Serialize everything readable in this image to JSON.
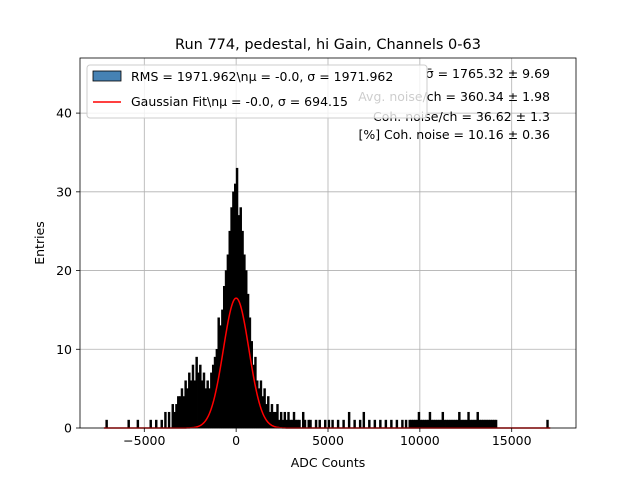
{
  "chart_data": {
    "type": "histogram",
    "title": "Run 774, pedestal, hi Gain, Channels 0-63",
    "xlabel": "ADC Counts",
    "ylabel": "Entries",
    "xlim": [
      -8500,
      18500
    ],
    "ylim": [
      0,
      47
    ],
    "xticks": [
      -5000,
      0,
      5000,
      10000,
      15000
    ],
    "xtick_labels": [
      "−5000",
      "0",
      "5000",
      "10000",
      "15000"
    ],
    "yticks": [
      0,
      10,
      20,
      30,
      40
    ],
    "ytick_labels": [
      "0",
      "10",
      "20",
      "30",
      "40"
    ],
    "grid": true,
    "bin_width": 100,
    "legend_location": "top-left",
    "series": [
      {
        "name": "RMS = 1971.962\\nμ = -0.0, σ = 1971.962",
        "kind": "histogram",
        "color": "#000000",
        "legend_color": "#4682b4",
        "bins": [
          [
            -7100,
            1
          ],
          [
            -5900,
            1
          ],
          [
            -5400,
            1
          ],
          [
            -4700,
            1
          ],
          [
            -4400,
            1
          ],
          [
            -4100,
            1
          ],
          [
            -3900,
            2
          ],
          [
            -3700,
            2
          ],
          [
            -3500,
            3
          ],
          [
            -3400,
            2
          ],
          [
            -3300,
            3
          ],
          [
            -3200,
            4
          ],
          [
            -3100,
            4
          ],
          [
            -3000,
            5
          ],
          [
            -2900,
            4
          ],
          [
            -2800,
            6
          ],
          [
            -2700,
            5
          ],
          [
            -2600,
            7
          ],
          [
            -2500,
            6
          ],
          [
            -2400,
            8
          ],
          [
            -2300,
            6
          ],
          [
            -2200,
            9
          ],
          [
            -2100,
            7
          ],
          [
            -2000,
            8
          ],
          [
            -1900,
            6
          ],
          [
            -1800,
            7
          ],
          [
            -1700,
            5
          ],
          [
            -1600,
            6
          ],
          [
            -1500,
            5
          ],
          [
            -1400,
            7
          ],
          [
            -1300,
            8
          ],
          [
            -1200,
            9
          ],
          [
            -1100,
            10
          ],
          [
            -1000,
            14
          ],
          [
            -900,
            13
          ],
          [
            -800,
            15
          ],
          [
            -700,
            18
          ],
          [
            -600,
            20
          ],
          [
            -500,
            22
          ],
          [
            -400,
            25
          ],
          [
            -300,
            28
          ],
          [
            -200,
            30
          ],
          [
            -100,
            31
          ],
          [
            0,
            33
          ],
          [
            100,
            27
          ],
          [
            200,
            28
          ],
          [
            300,
            25
          ],
          [
            400,
            22
          ],
          [
            500,
            20
          ],
          [
            600,
            17
          ],
          [
            700,
            14
          ],
          [
            800,
            11
          ],
          [
            900,
            8
          ],
          [
            1000,
            9
          ],
          [
            1100,
            6
          ],
          [
            1200,
            5
          ],
          [
            1300,
            6
          ],
          [
            1400,
            4
          ],
          [
            1500,
            5
          ],
          [
            1600,
            3
          ],
          [
            1700,
            4
          ],
          [
            1800,
            2
          ],
          [
            1900,
            3
          ],
          [
            2000,
            2
          ],
          [
            2100,
            2
          ],
          [
            2200,
            3
          ],
          [
            2300,
            1
          ],
          [
            2400,
            2
          ],
          [
            2500,
            1
          ],
          [
            2600,
            2
          ],
          [
            2700,
            1
          ],
          [
            2800,
            2
          ],
          [
            2900,
            1
          ],
          [
            3000,
            1
          ],
          [
            3100,
            2
          ],
          [
            3200,
            1
          ],
          [
            3300,
            1
          ],
          [
            3400,
            1
          ],
          [
            3600,
            2
          ],
          [
            3700,
            1
          ],
          [
            3900,
            1
          ],
          [
            4000,
            1
          ],
          [
            4300,
            1
          ],
          [
            4500,
            1
          ],
          [
            4800,
            1
          ],
          [
            5000,
            1
          ],
          [
            5200,
            1
          ],
          [
            5500,
            1
          ],
          [
            5800,
            1
          ],
          [
            6100,
            2
          ],
          [
            6400,
            1
          ],
          [
            6700,
            1
          ],
          [
            6900,
            2
          ],
          [
            7200,
            1
          ],
          [
            7500,
            1
          ],
          [
            7800,
            1
          ],
          [
            8100,
            1
          ],
          [
            8400,
            1
          ],
          [
            8700,
            1
          ],
          [
            9000,
            1
          ],
          [
            9200,
            1
          ],
          [
            9400,
            1
          ],
          [
            9500,
            1
          ],
          [
            9600,
            1
          ],
          [
            9700,
            1
          ],
          [
            9800,
            1
          ],
          [
            9900,
            2
          ],
          [
            10000,
            1
          ],
          [
            10100,
            1
          ],
          [
            10200,
            1
          ],
          [
            10300,
            1
          ],
          [
            10400,
            1
          ],
          [
            10500,
            2
          ],
          [
            10600,
            1
          ],
          [
            10700,
            1
          ],
          [
            10800,
            1
          ],
          [
            10900,
            1
          ],
          [
            11000,
            1
          ],
          [
            11100,
            1
          ],
          [
            11200,
            2
          ],
          [
            11300,
            1
          ],
          [
            11400,
            1
          ],
          [
            11500,
            1
          ],
          [
            11600,
            1
          ],
          [
            11700,
            1
          ],
          [
            11800,
            1
          ],
          [
            11900,
            1
          ],
          [
            12000,
            1
          ],
          [
            12100,
            2
          ],
          [
            12200,
            1
          ],
          [
            12300,
            1
          ],
          [
            12400,
            1
          ],
          [
            12500,
            1
          ],
          [
            12600,
            2
          ],
          [
            12700,
            1
          ],
          [
            12800,
            1
          ],
          [
            12900,
            1
          ],
          [
            13000,
            1
          ],
          [
            13100,
            2
          ],
          [
            13200,
            1
          ],
          [
            13300,
            1
          ],
          [
            13400,
            1
          ],
          [
            13500,
            1
          ],
          [
            13600,
            1
          ],
          [
            13700,
            1
          ],
          [
            13800,
            1
          ],
          [
            13900,
            1
          ],
          [
            14000,
            1
          ],
          [
            14100,
            1
          ],
          [
            16900,
            1
          ]
        ]
      },
      {
        "name": "Gaussian Fit\\nμ = -0.0, σ = 694.15",
        "kind": "line",
        "color": "#ff0000",
        "mu": 0.0,
        "sigma": 694.15,
        "amplitude": 16.5,
        "x_range": [
          -7200,
          17100
        ]
      }
    ],
    "annotations": [
      "σ̄ = 1765.32 ± 9.69",
      "Avg. noise/ch = 360.34 ± 1.98",
      "Coh. noise/ch = 36.62 ± 1.3",
      "[%] Coh. noise = 10.16 ± 0.36"
    ]
  }
}
